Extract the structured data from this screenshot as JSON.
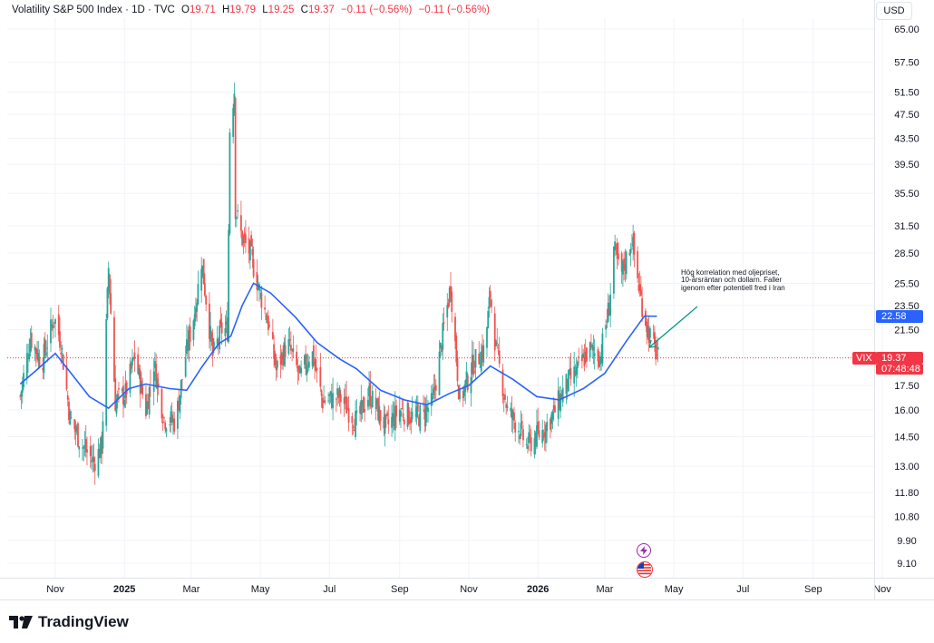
{
  "header": {
    "symbol": "Volatility S&P 500 Index · 1D · TVC",
    "open_label": "O",
    "open": "19.71",
    "high_label": "H",
    "high": "19.79",
    "low_label": "L",
    "low": "19.25",
    "close_label": "C",
    "close": "19.37",
    "change": "−0.11 (−0.56%)",
    "change2": "−0.11 (−0.56%)"
  },
  "currency_button": "USD",
  "tags": {
    "symbol_tag": "VIX",
    "price_tag": "19.37",
    "countdown": "07:48:48",
    "ma_tag": "22.58"
  },
  "annotation": "Hög korrelation med oljepriset, 10-årsräntan och dollarn. Faller igenom efter potentiell fred i Iran",
  "icons": [
    "lightning-icon",
    "us-flag-icon",
    "tradingview-logo-icon"
  ],
  "branding": "TradingView",
  "colors": {
    "up": "#26a69a",
    "down": "#ef5350",
    "ma": "#2962ff",
    "price_line": "#f23645",
    "arrow": "#089981"
  },
  "chart_data": {
    "type": "candlestick",
    "title": "Volatility S&P 500 Index · 1D · TVC",
    "y_scale": "log",
    "y_ticks": [
      "65.00",
      "57.50",
      "51.50",
      "47.50",
      "43.50",
      "39.50",
      "35.50",
      "31.50",
      "28.50",
      "25.50",
      "23.50",
      "21.50",
      "17.50",
      "16.00",
      "14.50",
      "13.00",
      "11.80",
      "10.80",
      "9.90",
      "9.10"
    ],
    "x_ticks": [
      {
        "label": "Nov",
        "date": "2024-11-01"
      },
      {
        "label": "2025",
        "date": "2025-01-01",
        "bold": true
      },
      {
        "label": "Mar",
        "date": "2025-03-01"
      },
      {
        "label": "May",
        "date": "2025-05-01"
      },
      {
        "label": "Jul",
        "date": "2025-07-01"
      },
      {
        "label": "Sep",
        "date": "2025-09-01"
      },
      {
        "label": "Nov",
        "date": "2025-11-01"
      },
      {
        "label": "2026",
        "date": "2026-01-01",
        "bold": true
      },
      {
        "label": "Mar",
        "date": "2026-03-01"
      },
      {
        "label": "May",
        "date": "2026-05-01"
      },
      {
        "label": "Jul",
        "date": "2026-07-01"
      },
      {
        "label": "Sep",
        "date": "2026-09-01"
      },
      {
        "label": "Nov",
        "date": "2026-11-01"
      }
    ],
    "series": [
      {
        "type": "close_path",
        "points": [
          [
            "2024-10-01",
            16.8
          ],
          [
            "2024-10-10",
            20.9
          ],
          [
            "2024-10-20",
            19.0
          ],
          [
            "2024-10-31",
            22.5
          ],
          [
            "2024-11-06",
            20.5
          ],
          [
            "2024-11-14",
            15.5
          ],
          [
            "2024-11-25",
            14.0
          ],
          [
            "2024-12-05",
            13.2
          ],
          [
            "2024-12-12",
            14.0
          ],
          [
            "2024-12-18",
            27.0
          ],
          [
            "2024-12-24",
            16.5
          ],
          [
            "2025-01-02",
            17.0
          ],
          [
            "2025-01-10",
            19.5
          ],
          [
            "2025-01-20",
            16.0
          ],
          [
            "2025-01-27",
            19.0
          ],
          [
            "2025-02-05",
            15.5
          ],
          [
            "2025-02-15",
            15.3
          ],
          [
            "2025-02-24",
            19.5
          ],
          [
            "2025-03-05",
            23.5
          ],
          [
            "2025-03-10",
            27.8
          ],
          [
            "2025-03-20",
            19.5
          ],
          [
            "2025-03-28",
            21.5
          ],
          [
            "2025-04-02",
            21.5
          ],
          [
            "2025-04-04",
            45.0
          ],
          [
            "2025-04-08",
            52.0
          ],
          [
            "2025-04-09",
            33.6
          ],
          [
            "2025-04-15",
            30.0
          ],
          [
            "2025-04-22",
            28.5
          ],
          [
            "2025-05-01",
            24.5
          ],
          [
            "2025-05-08",
            22.0
          ],
          [
            "2025-05-15",
            18.5
          ],
          [
            "2025-05-25",
            20.5
          ],
          [
            "2025-06-05",
            18.0
          ],
          [
            "2025-06-15",
            20.0
          ],
          [
            "2025-06-25",
            16.5
          ],
          [
            "2025-07-10",
            16.8
          ],
          [
            "2025-07-25",
            15.3
          ],
          [
            "2025-08-05",
            17.0
          ],
          [
            "2025-08-20",
            15.0
          ],
          [
            "2025-09-01",
            16.0
          ],
          [
            "2025-09-15",
            15.5
          ],
          [
            "2025-09-30",
            16.4
          ],
          [
            "2025-10-10",
            21.7
          ],
          [
            "2025-10-16",
            25.3
          ],
          [
            "2025-10-24",
            16.5
          ],
          [
            "2025-11-05",
            19.0
          ],
          [
            "2025-11-15",
            20.0
          ],
          [
            "2025-11-20",
            24.5
          ],
          [
            "2025-11-25",
            20.0
          ],
          [
            "2025-12-05",
            16.0
          ],
          [
            "2025-12-15",
            15.0
          ],
          [
            "2025-12-22",
            14.0
          ],
          [
            "2026-01-05",
            14.8
          ],
          [
            "2026-01-15",
            15.8
          ],
          [
            "2026-01-25",
            17.5
          ],
          [
            "2026-02-05",
            18.5
          ],
          [
            "2026-02-15",
            20.0
          ],
          [
            "2026-02-25",
            19.5
          ],
          [
            "2026-03-05",
            23.5
          ],
          [
            "2026-03-09",
            29.0
          ],
          [
            "2026-03-15",
            26.0
          ],
          [
            "2026-03-25",
            30.0
          ],
          [
            "2026-04-01",
            24.5
          ],
          [
            "2026-04-08",
            21.5
          ],
          [
            "2026-04-17",
            19.37
          ]
        ]
      },
      {
        "type": "moving_average",
        "points": [
          [
            "2024-10-01",
            17.6
          ],
          [
            "2024-10-15",
            18.5
          ],
          [
            "2024-11-01",
            19.7
          ],
          [
            "2024-11-15",
            18.3
          ],
          [
            "2024-12-01",
            16.8
          ],
          [
            "2024-12-18",
            16.1
          ],
          [
            "2025-01-05",
            17.3
          ],
          [
            "2025-01-20",
            17.6
          ],
          [
            "2025-02-10",
            17.3
          ],
          [
            "2025-02-25",
            17.2
          ],
          [
            "2025-03-10",
            18.7
          ],
          [
            "2025-03-25",
            20.4
          ],
          [
            "2025-04-05",
            21.0
          ],
          [
            "2025-04-15",
            23.5
          ],
          [
            "2025-04-25",
            25.5
          ],
          [
            "2025-05-10",
            24.6
          ],
          [
            "2025-06-01",
            22.5
          ],
          [
            "2025-06-20",
            20.5
          ],
          [
            "2025-07-10",
            19.3
          ],
          [
            "2025-07-25",
            18.6
          ],
          [
            "2025-08-15",
            17.2
          ],
          [
            "2025-09-05",
            16.6
          ],
          [
            "2025-09-25",
            16.3
          ],
          [
            "2025-10-15",
            17.0
          ],
          [
            "2025-11-01",
            17.5
          ],
          [
            "2025-11-20",
            18.8
          ],
          [
            "2025-12-10",
            17.9
          ],
          [
            "2025-12-31",
            16.8
          ],
          [
            "2026-01-20",
            16.6
          ],
          [
            "2026-02-10",
            17.3
          ],
          [
            "2026-03-01",
            18.3
          ],
          [
            "2026-03-20",
            20.6
          ],
          [
            "2026-04-05",
            22.6
          ],
          [
            "2026-04-16",
            22.58
          ]
        ]
      }
    ],
    "last_close": 19.37,
    "ma_last": 22.58,
    "currency": "USD"
  }
}
